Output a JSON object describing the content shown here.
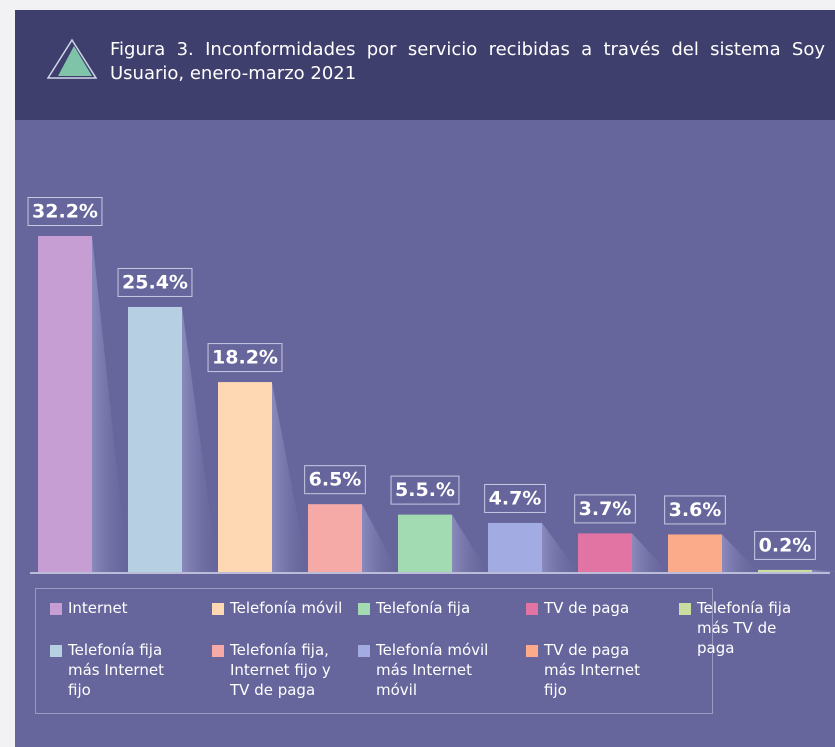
{
  "chart_data": {
    "type": "bar",
    "figure_label": "Figura 3.",
    "title": "Inconformidades por servicio recibidas a través del sistema Soy Usuario, enero-marzo 2021",
    "categories": [
      "Internet",
      "Telefonía fija más Internet fijo",
      "Telefonía móvil",
      "Telefonía fija, Internet fijo y TV de paga",
      "Telefonía fija",
      "Telefonía móvil más Internet móvil",
      "TV de paga",
      "TV de paga más Internet fijo",
      "Telefonía fija más TV de paga"
    ],
    "values": [
      32.2,
      25.4,
      18.2,
      6.5,
      5.5,
      4.7,
      3.7,
      3.6,
      0.2
    ],
    "value_labels": [
      "32.2%",
      "25.4%",
      "18.2%",
      "6.5%",
      "5.5.%",
      "4.7%",
      "3.7%",
      "3.6%",
      "0.2%"
    ],
    "colors": [
      "#c79ed3",
      "#b6cfe2",
      "#fdd8b3",
      "#f5aaa8",
      "#a2dab2",
      "#a2abe2",
      "#e274a4",
      "#fbab8a",
      "#cadea2"
    ],
    "legend": true
  }
}
